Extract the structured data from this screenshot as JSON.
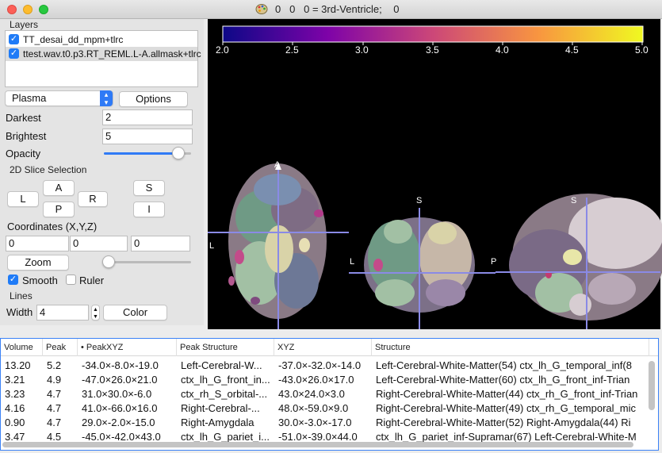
{
  "window": {
    "title": "0   0   0 = 3rd-Ventricle;    0"
  },
  "layers": {
    "group_label": "Layers",
    "items": [
      {
        "label": "TT_desai_dd_mpm+tlrc",
        "checked": true
      },
      {
        "label": "ttest.wav.t0.p3.RT_REML.L-A.allmask+tlrc",
        "checked": true
      }
    ]
  },
  "colormap": {
    "selected": "Plasma",
    "options_label": "Options"
  },
  "darkest": {
    "label": "Darkest",
    "value": "2"
  },
  "brightest": {
    "label": "Brightest",
    "value": "5"
  },
  "opacity": {
    "label": "Opacity",
    "level": 0.85
  },
  "slice": {
    "group_label": "2D Slice Selection",
    "btn_L": "L",
    "btn_A": "A",
    "btn_R": "R",
    "btn_P": "P",
    "btn_S": "S",
    "btn_I": "I"
  },
  "coords": {
    "label": "Coordinates (X,Y,Z)",
    "x": "0",
    "y": "0",
    "z": "0"
  },
  "zoom": {
    "label": "Zoom",
    "level": 0.05
  },
  "smooth": {
    "label": "Smooth",
    "checked": true
  },
  "ruler": {
    "label": "Ruler",
    "checked": false
  },
  "lines": {
    "group_label": "Lines",
    "width_label": "Width",
    "width_value": "4",
    "color_label": "Color"
  },
  "colorbar": {
    "ticks": [
      "2.0",
      "2.5",
      "3.0",
      "3.5",
      "4.0",
      "4.5",
      "5.0"
    ],
    "colors": [
      "#0d0887",
      "#7e03a8",
      "#cc4778",
      "#f89540",
      "#f0f921"
    ]
  },
  "views": {
    "axial": {
      "top": "A",
      "left": "L"
    },
    "coronal": {
      "top": "S",
      "left": "L"
    },
    "sagittal": {
      "top": "S",
      "left": "P"
    }
  },
  "table": {
    "columns": [
      "Volume",
      "Peak",
      "• PeakXYZ",
      "Peak Structure",
      "XYZ",
      "Structure"
    ],
    "rows": [
      [
        "13.20",
        "5.2",
        "-34.0×-8.0×-19.0",
        "Left-Cerebral-W...",
        "-37.0×-32.0×-14.0",
        "Left-Cerebral-White-Matter(54) ctx_lh_G_temporal_inf(8"
      ],
      [
        "3.21",
        "4.9",
        "-47.0×26.0×21.0",
        "ctx_lh_G_front_in...",
        "-43.0×26.0×17.0",
        "Left-Cerebral-White-Matter(60) ctx_lh_G_front_inf-Trian"
      ],
      [
        "3.23",
        "4.7",
        "31.0×30.0×-6.0",
        "ctx_rh_S_orbital-...",
        "43.0×24.0×3.0",
        "Right-Cerebral-White-Matter(44) ctx_rh_G_front_inf-Trian"
      ],
      [
        "4.16",
        "4.7",
        "41.0×-66.0×16.0",
        "Right-Cerebral-...",
        "48.0×-59.0×9.0",
        "Right-Cerebral-White-Matter(49) ctx_rh_G_temporal_mic"
      ],
      [
        "0.90",
        "4.7",
        "29.0×-2.0×-15.0",
        "Right-Amygdala",
        "30.0×-3.0×-17.0",
        "Right-Cerebral-White-Matter(52) Right-Amygdala(44) Ri"
      ],
      [
        "3.47",
        "4.5",
        "-45.0×-42.0×43.0",
        "ctx_lh_G_pariet_i...",
        "-51.0×-39.0×44.0",
        "ctx_lh_G_pariet_inf-Supramar(67) Left-Cerebral-White-M"
      ]
    ]
  }
}
